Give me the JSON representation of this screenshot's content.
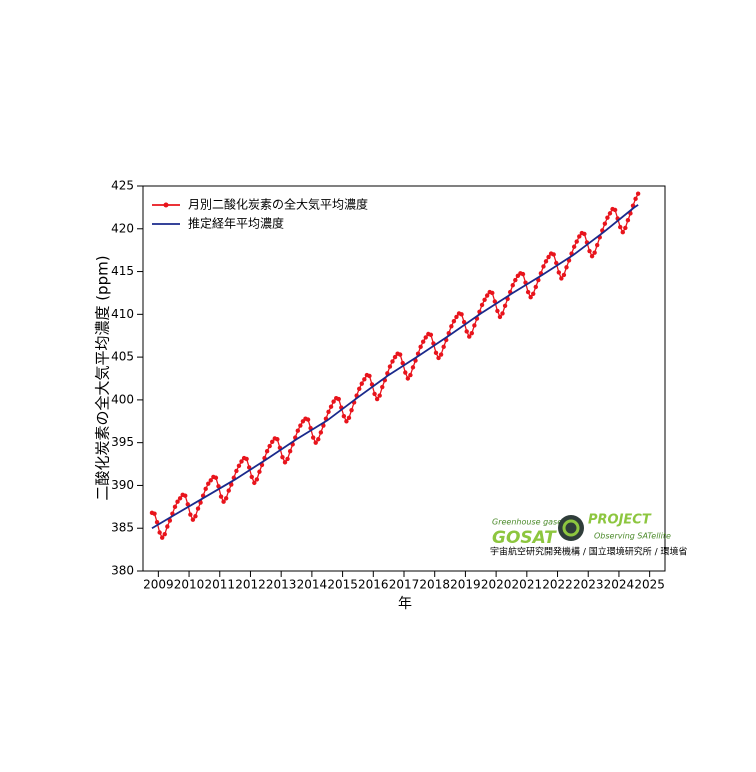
{
  "chart_data": {
    "type": "line",
    "ylabel": "二酸化炭素の全大気平均濃度 (ppm)",
    "xlabel": "年",
    "xlim": [
      2009,
      2026
    ],
    "ylim": [
      380,
      425
    ],
    "xticks": [
      {
        "value": 2009.5,
        "label": "2009"
      },
      {
        "value": 2010.5,
        "label": "2010"
      },
      {
        "value": 2011.5,
        "label": "2011"
      },
      {
        "value": 2012.5,
        "label": "2012"
      },
      {
        "value": 2013.5,
        "label": "2013"
      },
      {
        "value": 2014.5,
        "label": "2014"
      },
      {
        "value": 2015.5,
        "label": "2015"
      },
      {
        "value": 2016.5,
        "label": "2016"
      },
      {
        "value": 2017.5,
        "label": "2017"
      },
      {
        "value": 2018.5,
        "label": "2018"
      },
      {
        "value": 2019.5,
        "label": "2019"
      },
      {
        "value": 2020.5,
        "label": "2020"
      },
      {
        "value": 2021.5,
        "label": "2021"
      },
      {
        "value": 2022.5,
        "label": "2022"
      },
      {
        "value": 2023.5,
        "label": "2023"
      },
      {
        "value": 2024.5,
        "label": "2024"
      },
      {
        "value": 2025.5,
        "label": "2025"
      }
    ],
    "yticks": [
      380,
      385,
      390,
      395,
      400,
      405,
      410,
      415,
      420,
      425
    ],
    "legend": "upper left",
    "series": [
      {
        "name": "月別二酸化炭素の全大気平均濃度",
        "color": "#e8141c",
        "markers": true,
        "x": [
          2009.292,
          2009.375,
          2009.458,
          2009.542,
          2009.625,
          2009.708,
          2009.792,
          2009.875,
          2009.958,
          2010.042,
          2010.125,
          2010.208,
          2010.292,
          2010.375,
          2010.458,
          2010.542,
          2010.625,
          2010.708,
          2010.792,
          2010.875,
          2010.958,
          2011.042,
          2011.125,
          2011.208,
          2011.292,
          2011.375,
          2011.458,
          2011.542,
          2011.625,
          2011.708,
          2011.792,
          2011.875,
          2011.958,
          2012.042,
          2012.125,
          2012.208,
          2012.292,
          2012.375,
          2012.458,
          2012.542,
          2012.625,
          2012.708,
          2012.792,
          2012.875,
          2012.958,
          2013.042,
          2013.125,
          2013.208,
          2013.292,
          2013.375,
          2013.458,
          2013.542,
          2013.625,
          2013.708,
          2013.792,
          2013.875,
          2013.958,
          2014.042,
          2014.125,
          2014.208,
          2014.292,
          2014.375,
          2014.458,
          2014.542,
          2014.625,
          2014.708,
          2014.792,
          2014.875,
          2014.958,
          2015.042,
          2015.125,
          2015.208,
          2015.292,
          2015.375,
          2015.458,
          2015.542,
          2015.625,
          2015.708,
          2015.792,
          2015.875,
          2015.958,
          2016.042,
          2016.125,
          2016.208,
          2016.292,
          2016.375,
          2016.458,
          2016.542,
          2016.625,
          2016.708,
          2016.792,
          2016.875,
          2016.958,
          2017.042,
          2017.125,
          2017.208,
          2017.292,
          2017.375,
          2017.458,
          2017.542,
          2017.625,
          2017.708,
          2017.792,
          2017.875,
          2017.958,
          2018.042,
          2018.125,
          2018.208,
          2018.292,
          2018.375,
          2018.458,
          2018.542,
          2018.625,
          2018.708,
          2018.792,
          2018.875,
          2018.958,
          2019.042,
          2019.125,
          2019.208,
          2019.292,
          2019.375,
          2019.458,
          2019.542,
          2019.625,
          2019.708,
          2019.792,
          2019.875,
          2019.958,
          2020.042,
          2020.125,
          2020.208,
          2020.292,
          2020.375,
          2020.458,
          2020.542,
          2020.625,
          2020.708,
          2020.792,
          2020.875,
          2020.958,
          2021.042,
          2021.125,
          2021.208,
          2021.292,
          2021.375,
          2021.458,
          2021.542,
          2021.625,
          2021.708,
          2021.792,
          2021.875,
          2021.958,
          2022.042,
          2022.125,
          2022.208,
          2022.292,
          2022.375,
          2022.458,
          2022.542,
          2022.625,
          2022.708,
          2022.792,
          2022.875,
          2022.958,
          2023.042,
          2023.125,
          2023.208,
          2023.292,
          2023.375,
          2023.458,
          2023.542,
          2023.625,
          2023.708,
          2023.792,
          2023.875,
          2023.958,
          2024.042,
          2024.125,
          2024.208,
          2024.292,
          2024.375,
          2024.458,
          2024.542,
          2024.625,
          2024.708,
          2024.792,
          2024.875,
          2024.958,
          2025.042,
          2025.125
        ],
        "values": [
          386.8,
          386.7,
          385.7,
          384.5,
          383.9,
          384.3,
          385.2,
          385.9,
          386.7,
          387.5,
          388.1,
          388.5,
          388.9,
          388.8,
          387.8,
          386.6,
          386.0,
          386.4,
          387.3,
          388.0,
          388.8,
          389.6,
          390.2,
          390.6,
          391.0,
          390.9,
          389.9,
          388.7,
          388.1,
          388.5,
          389.4,
          390.1,
          390.9,
          391.7,
          392.3,
          392.8,
          393.2,
          393.1,
          392.1,
          391.0,
          390.3,
          390.7,
          391.6,
          392.4,
          393.2,
          394.0,
          394.6,
          395.1,
          395.5,
          395.4,
          394.4,
          393.3,
          392.7,
          393.1,
          394.0,
          394.8,
          395.6,
          396.4,
          397.0,
          397.5,
          397.8,
          397.7,
          396.7,
          395.6,
          395.0,
          395.4,
          396.2,
          397.0,
          397.8,
          398.6,
          399.2,
          399.8,
          400.2,
          400.1,
          399.1,
          398.1,
          397.5,
          397.9,
          398.8,
          399.7,
          400.5,
          401.3,
          401.9,
          402.4,
          402.9,
          402.8,
          401.8,
          400.7,
          400.1,
          400.5,
          401.5,
          402.3,
          403.1,
          403.9,
          404.5,
          405.0,
          405.4,
          405.3,
          404.3,
          403.2,
          402.5,
          402.9,
          403.8,
          404.6,
          405.4,
          406.2,
          406.8,
          407.3,
          407.7,
          407.6,
          406.6,
          405.5,
          404.9,
          405.3,
          406.2,
          407.0,
          407.8,
          408.6,
          409.2,
          409.7,
          410.1,
          410.0,
          409.1,
          408.0,
          407.4,
          407.8,
          408.7,
          409.5,
          410.3,
          411.1,
          411.7,
          412.2,
          412.6,
          412.5,
          411.5,
          410.4,
          409.7,
          410.1,
          411.0,
          411.8,
          412.6,
          413.4,
          414.0,
          414.5,
          414.8,
          414.7,
          413.7,
          412.6,
          412.0,
          412.4,
          413.2,
          414.0,
          414.8,
          415.6,
          416.2,
          416.7,
          417.1,
          417.0,
          416.0,
          414.9,
          414.2,
          414.6,
          415.5,
          416.3,
          417.1,
          417.9,
          418.5,
          419.1,
          419.5,
          419.4,
          418.4,
          417.4,
          416.8,
          417.2,
          418.1,
          419.0,
          419.8,
          420.6,
          421.3,
          421.8,
          422.3,
          422.2,
          421.2,
          420.2,
          419.6,
          420.1,
          421.0,
          421.8,
          422.7,
          423.5,
          424.1
        ]
      },
      {
        "name": "推定経年平均濃度",
        "color": "#1a2a8c",
        "markers": false,
        "x": [
          2009.292,
          2010,
          2011,
          2012,
          2013,
          2014,
          2015,
          2016,
          2017,
          2018,
          2019,
          2020,
          2021,
          2022,
          2023,
          2024,
          2025,
          2025.125
        ],
        "values": [
          385.0,
          386.5,
          388.6,
          390.7,
          393.0,
          395.4,
          397.6,
          400.3,
          402.9,
          405.2,
          407.6,
          410.1,
          412.4,
          414.6,
          416.9,
          419.6,
          422.5,
          422.8
        ]
      }
    ]
  },
  "logo": {
    "tagline": "Greenhouse gases",
    "name": "GOSAT",
    "project": "PROJECT",
    "subtitle": "Observing SATellite",
    "agencies": "宇宙航空研究開発機構 / 国立環境研究所 / 環境省"
  }
}
